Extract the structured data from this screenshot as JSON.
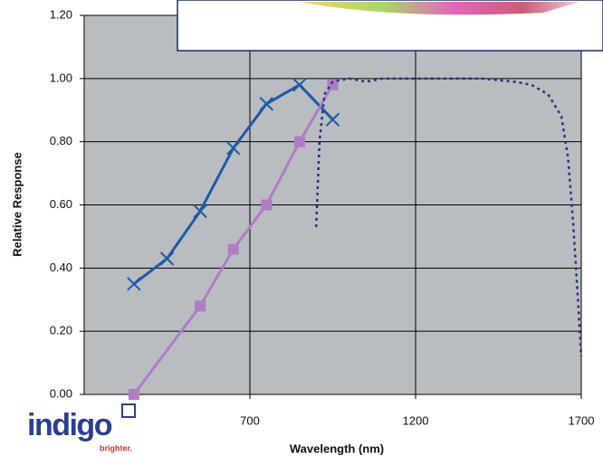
{
  "chart_data": {
    "type": "line",
    "ylabel": "Relative Response",
    "xlabel": "Wavelength (nm)",
    "xlim": [
      200,
      1700
    ],
    "xticks": [
      700,
      1200,
      1700
    ],
    "ylim": [
      0,
      1.2
    ],
    "yticks": [
      {
        "value": 0,
        "label": "0.00"
      },
      {
        "value": 0.2,
        "label": "0.20"
      },
      {
        "value": 0.4,
        "label": "0.40"
      },
      {
        "value": 0.6,
        "label": "0.60"
      },
      {
        "value": 0.8,
        "label": "0.80"
      },
      {
        "value": 1,
        "label": "1.00"
      },
      {
        "value": 1.2,
        "label": "1.20"
      }
    ],
    "grid": true,
    "series": [
      {
        "color": "#1f5aa6",
        "marker": "x",
        "style": "solid",
        "x": [
          350,
          450,
          550,
          650,
          750,
          850,
          950
        ],
        "values": [
          0.35,
          0.43,
          0.58,
          0.78,
          0.92,
          0.98,
          0.87
        ]
      },
      {
        "color": "#b07cc6",
        "marker": "square",
        "style": "solid",
        "x": [
          350,
          550,
          650,
          750,
          850,
          950
        ],
        "values": [
          0,
          0.28,
          0.46,
          0.6,
          0.8,
          0.98
        ]
      },
      {
        "color": "#2a2f7a",
        "marker": "none",
        "style": "dotted",
        "x": [
          900,
          910,
          925,
          950,
          1000,
          1050,
          1100,
          1200,
          1300,
          1400,
          1500,
          1550,
          1600,
          1640,
          1660,
          1675,
          1690,
          1700
        ],
        "values": [
          0.53,
          0.8,
          0.95,
          0.99,
          1,
          0.99,
          1,
          1,
          1,
          1,
          0.99,
          0.98,
          0.95,
          0.88,
          0.75,
          0.55,
          0.3,
          0.12
        ]
      }
    ]
  },
  "logo": {
    "name": "indigo",
    "tagline": "brighter."
  }
}
